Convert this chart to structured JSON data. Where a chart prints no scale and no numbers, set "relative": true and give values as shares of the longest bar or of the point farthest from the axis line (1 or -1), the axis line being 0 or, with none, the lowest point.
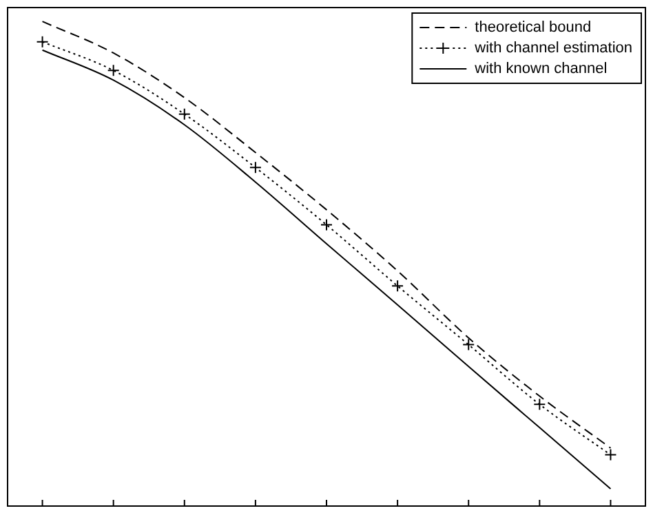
{
  "chart_data": {
    "type": "line",
    "relative": true,
    "legend": "top right",
    "grid": false,
    "categories": [
      null,
      null,
      null,
      null,
      null,
      null,
      null,
      null,
      null
    ],
    "series": [
      {
        "name": "theoretical bound",
        "color": "#000000",
        "line_style": "dashed",
        "marker": "none",
        "values": [
          1,
          0.935,
          0.843,
          0.73,
          0.612,
          0.486,
          0.348,
          0.228,
          0.121
        ]
      },
      {
        "name": "with channel estimation",
        "color": "#000000",
        "line_style": "dotted",
        "marker": "cross",
        "values": [
          0.958,
          0.899,
          0.809,
          0.699,
          0.581,
          0.455,
          0.334,
          0.211,
          0.107
        ]
      },
      {
        "name": "with known channel",
        "color": "#000000",
        "line_style": "solid",
        "marker": "none",
        "values": [
          0.941,
          0.879,
          0.787,
          0.669,
          0.542,
          0.416,
          0.289,
          0.163,
          0.037
        ]
      }
    ]
  }
}
